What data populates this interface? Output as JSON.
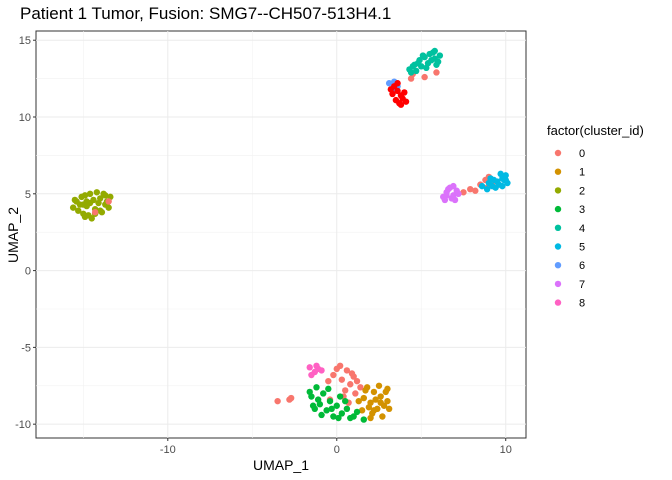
{
  "chart_data": {
    "type": "scatter",
    "title": "Patient 1 Tumor, Fusion:  SMG7--CH507-513H4.1",
    "xlabel": "UMAP_1",
    "ylabel": "UMAP_2",
    "xlim": [
      -17.8,
      11.2
    ],
    "ylim": [
      -10.9,
      15.6
    ],
    "x_ticks": [
      -10,
      0,
      10
    ],
    "y_ticks": [
      -10,
      -5,
      0,
      5,
      10,
      15
    ],
    "x_tick_labels": [
      "-10",
      "0",
      "10"
    ],
    "y_tick_labels": [
      "-10",
      "-5",
      "0",
      "5",
      "10",
      "15"
    ],
    "grid": true,
    "legend": {
      "title": "factor(cluster_id)",
      "position": "right",
      "entries": [
        {
          "label": "0",
          "color": "#F8766D"
        },
        {
          "label": "1",
          "color": "#D39200"
        },
        {
          "label": "2",
          "color": "#93AA00"
        },
        {
          "label": "3",
          "color": "#00BA38"
        },
        {
          "label": "4",
          "color": "#00C19F"
        },
        {
          "label": "5",
          "color": "#00B9E3"
        },
        {
          "label": "6",
          "color": "#619CFF"
        },
        {
          "label": "7",
          "color": "#DB72FB"
        },
        {
          "label": "8",
          "color": "#FF61C3"
        }
      ]
    },
    "extra_colors": {
      "red_cluster": "#FF0000"
    },
    "series": [
      {
        "color_key": "2",
        "points": [
          [
            -15.5,
            4.6
          ],
          [
            -15.2,
            4.3
          ],
          [
            -14.9,
            4.9
          ],
          [
            -14.6,
            4.4
          ],
          [
            -14.3,
            4.0
          ],
          [
            -14.0,
            4.7
          ],
          [
            -13.7,
            4.3
          ],
          [
            -13.4,
            4.8
          ],
          [
            -15.0,
            3.7
          ],
          [
            -14.5,
            3.4
          ],
          [
            -14.2,
            5.1
          ],
          [
            -13.9,
            3.8
          ],
          [
            -15.6,
            4.1
          ],
          [
            -14.8,
            4.2
          ],
          [
            -14.4,
            4.6
          ],
          [
            -13.6,
            4.5
          ],
          [
            -15.3,
            3.9
          ],
          [
            -14.7,
            3.6
          ],
          [
            -14.1,
            4.4
          ],
          [
            -13.8,
            5.0
          ],
          [
            -15.1,
            4.8
          ],
          [
            -14.6,
            5.0
          ],
          [
            -14.9,
            3.5
          ],
          [
            -13.5,
            4.1
          ],
          [
            -14.3,
            3.7
          ],
          [
            -15.4,
            4.5
          ],
          [
            -14.0,
            3.9
          ],
          [
            -13.7,
            4.9
          ],
          [
            -14.8,
            4.5
          ],
          [
            -15.0,
            4.3
          ]
        ]
      },
      {
        "color_key": "0",
        "points": [
          [
            -14.3,
            3.8
          ],
          [
            -13.5,
            4.5
          ],
          [
            0.2,
            -6.2
          ],
          [
            0.6,
            -6.5
          ],
          [
            1.0,
            -6.9
          ],
          [
            0.3,
            -7.1
          ],
          [
            0.8,
            -7.4
          ],
          [
            -0.2,
            -6.8
          ],
          [
            0.5,
            -7.8
          ],
          [
            1.2,
            -7.2
          ],
          [
            0.0,
            -6.4
          ],
          [
            0.9,
            -6.7
          ],
          [
            -0.5,
            -7.2
          ],
          [
            1.4,
            -7.6
          ],
          [
            0.4,
            -8.2
          ],
          [
            -0.4,
            -8.4
          ],
          [
            1.1,
            -8.0
          ],
          [
            0.7,
            -8.6
          ],
          [
            -3.5,
            -8.5
          ],
          [
            -2.7,
            -8.3
          ],
          [
            -2.8,
            -8.4
          ],
          [
            7.5,
            5.1
          ],
          [
            7.9,
            5.3
          ],
          [
            8.5,
            5.6
          ],
          [
            8.8,
            5.9
          ],
          [
            9.0,
            6.1
          ],
          [
            8.2,
            5.2
          ],
          [
            9.3,
            5.8
          ],
          [
            8.9,
            5.4
          ],
          [
            4.5,
            12.8
          ],
          [
            4.4,
            12.5
          ],
          [
            5.2,
            12.6
          ],
          [
            5.9,
            12.9
          ]
        ]
      },
      {
        "color_key": "1",
        "points": [
          [
            1.8,
            -7.6
          ],
          [
            2.2,
            -7.9
          ],
          [
            2.6,
            -8.2
          ],
          [
            3.0,
            -8.5
          ],
          [
            2.0,
            -8.6
          ],
          [
            2.4,
            -9.0
          ],
          [
            2.8,
            -8.8
          ],
          [
            1.6,
            -8.3
          ],
          [
            2.1,
            -9.3
          ],
          [
            2.7,
            -9.5
          ],
          [
            3.1,
            -9.0
          ],
          [
            1.5,
            -9.1
          ],
          [
            2.3,
            -8.4
          ],
          [
            2.9,
            -7.9
          ],
          [
            1.9,
            -8.9
          ],
          [
            2.5,
            -7.5
          ],
          [
            2.0,
            -9.6
          ],
          [
            3.0,
            -7.7
          ],
          [
            1.7,
            -7.8
          ],
          [
            2.6,
            -8.6
          ],
          [
            1.3,
            -8.5
          ],
          [
            2.2,
            -9.1
          ]
        ]
      },
      {
        "color_key": "3",
        "points": [
          [
            -1.2,
            -7.6
          ],
          [
            -0.8,
            -8.0
          ],
          [
            -0.4,
            -8.5
          ],
          [
            0.0,
            -8.8
          ],
          [
            -1.5,
            -8.2
          ],
          [
            -1.0,
            -8.7
          ],
          [
            -0.6,
            -9.1
          ],
          [
            -1.3,
            -9.0
          ],
          [
            0.3,
            -9.3
          ],
          [
            -0.2,
            -9.5
          ],
          [
            0.6,
            -9.0
          ],
          [
            -1.6,
            -7.9
          ],
          [
            -0.9,
            -9.4
          ],
          [
            0.2,
            -8.2
          ],
          [
            -0.5,
            -7.7
          ],
          [
            -1.1,
            -8.4
          ],
          [
            0.8,
            -9.6
          ],
          [
            1.2,
            -9.2
          ],
          [
            1.6,
            -9.7
          ],
          [
            -0.3,
            -9.0
          ],
          [
            0.5,
            -8.5
          ],
          [
            -1.4,
            -8.8
          ],
          [
            0.1,
            -9.6
          ],
          [
            1.0,
            -9.5
          ]
        ]
      },
      {
        "color_key": "4",
        "points": [
          [
            4.3,
            13.1
          ],
          [
            4.6,
            13.4
          ],
          [
            4.9,
            13.7
          ],
          [
            5.2,
            13.9
          ],
          [
            5.5,
            14.1
          ],
          [
            5.8,
            13.8
          ],
          [
            6.0,
            13.6
          ],
          [
            5.4,
            13.5
          ],
          [
            5.0,
            13.3
          ],
          [
            4.7,
            13.0
          ],
          [
            5.7,
            14.2
          ],
          [
            6.1,
            14.0
          ],
          [
            4.4,
            12.9
          ],
          [
            5.1,
            14.0
          ],
          [
            5.9,
            13.4
          ],
          [
            5.3,
            13.2
          ],
          [
            4.8,
            13.5
          ],
          [
            5.6,
            13.7
          ],
          [
            4.5,
            13.3
          ],
          [
            5.8,
            14.3
          ]
        ]
      },
      {
        "color_key": "5",
        "points": [
          [
            8.9,
            5.3
          ],
          [
            9.2,
            5.5
          ],
          [
            9.5,
            5.8
          ],
          [
            9.8,
            6.0
          ],
          [
            10.0,
            6.2
          ],
          [
            9.6,
            5.6
          ],
          [
            9.9,
            5.9
          ],
          [
            9.3,
            5.9
          ],
          [
            9.7,
            6.3
          ],
          [
            10.1,
            5.7
          ],
          [
            9.0,
            5.7
          ],
          [
            9.4,
            5.4
          ],
          [
            9.8,
            5.5
          ],
          [
            10.0,
            5.9
          ],
          [
            9.1,
            6.0
          ],
          [
            8.6,
            5.5
          ]
        ]
      },
      {
        "color_key": "6",
        "points": [
          [
            3.1,
            12.2
          ],
          [
            3.4,
            12.3
          ],
          [
            3.6,
            12.0
          ],
          [
            3.3,
            11.8
          ]
        ]
      },
      {
        "color_key": "7",
        "points": [
          [
            6.3,
            4.8
          ],
          [
            6.5,
            5.1
          ],
          [
            6.7,
            5.4
          ],
          [
            6.9,
            4.9
          ],
          [
            7.1,
            5.2
          ],
          [
            6.4,
            4.6
          ],
          [
            6.8,
            4.7
          ],
          [
            7.2,
            5.0
          ],
          [
            6.6,
            5.3
          ],
          [
            7.0,
            4.6
          ],
          [
            6.5,
            4.9
          ],
          [
            6.9,
            5.5
          ]
        ]
      },
      {
        "color_key": "8",
        "points": [
          [
            -1.6,
            -6.3
          ],
          [
            -1.3,
            -6.6
          ],
          [
            -1.1,
            -6.4
          ],
          [
            -1.5,
            -6.8
          ],
          [
            -1.2,
            -6.2
          ],
          [
            -0.9,
            -6.5
          ]
        ]
      },
      {
        "color_key": "red_cluster",
        "points": [
          [
            3.4,
            12.0
          ],
          [
            3.6,
            11.7
          ],
          [
            3.8,
            11.4
          ],
          [
            3.5,
            11.1
          ],
          [
            3.7,
            10.9
          ],
          [
            3.9,
            11.2
          ],
          [
            3.3,
            11.5
          ],
          [
            4.0,
            11.6
          ],
          [
            3.6,
            12.2
          ],
          [
            3.8,
            10.8
          ],
          [
            3.2,
            11.8
          ],
          [
            4.1,
            11.0
          ]
        ]
      }
    ]
  }
}
